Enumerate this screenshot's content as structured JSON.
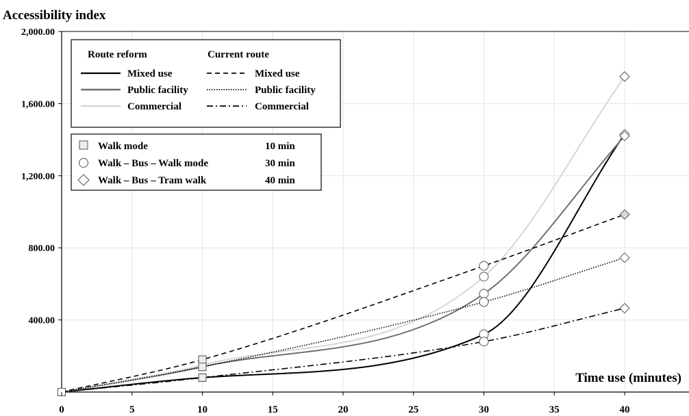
{
  "chart_data": {
    "type": "line",
    "ylabel": "Accessibility index",
    "xlabel": "Time use (minutes)",
    "xlim": [
      0,
      45
    ],
    "ylim": [
      0,
      2000
    ],
    "x_ticks": [
      "0",
      "5",
      "10",
      "15",
      "20",
      "25",
      "30",
      "35",
      "40"
    ],
    "x_tick_values": [
      0,
      5,
      10,
      15,
      20,
      25,
      30,
      35,
      40
    ],
    "y_ticks": [
      "400.00",
      "800.00",
      "1,200.00",
      "1,600.00",
      "2,000.00"
    ],
    "y_tick_values": [
      400,
      800,
      1200,
      1600,
      2000
    ],
    "grid": true,
    "x": [
      0,
      10,
      30,
      40
    ],
    "series": [
      {
        "name": "Mixed use",
        "group": "Route reform",
        "style": "solid",
        "color": "#000000",
        "values": [
          0,
          80,
          320,
          1430
        ]
      },
      {
        "name": "Public facility",
        "group": "Route reform",
        "style": "solid",
        "color": "#6f6f6f",
        "values": [
          0,
          140,
          545,
          1420
        ]
      },
      {
        "name": "Commercial",
        "group": "Route reform",
        "style": "solid",
        "color": "#d6d6d6",
        "values": [
          0,
          150,
          640,
          1750
        ]
      },
      {
        "name": "Mixed use",
        "group": "Current route",
        "style": "dashed",
        "color": "#000000",
        "values": [
          0,
          180,
          700,
          985
        ]
      },
      {
        "name": "Public facility",
        "group": "Current route",
        "style": "dotted",
        "color": "#000000",
        "values": [
          0,
          140,
          500,
          745
        ]
      },
      {
        "name": "Commercial",
        "group": "Current route",
        "style": "dashdot",
        "color": "#000000",
        "values": [
          0,
          80,
          280,
          465
        ]
      }
    ],
    "markers": [
      {
        "shape": "square",
        "label": "Walk mode",
        "time": "10 min"
      },
      {
        "shape": "circle",
        "label": "Walk – Bus – Walk mode",
        "time": "30 min"
      },
      {
        "shape": "diamond",
        "label": "Walk – Bus – Tram  walk",
        "time": "40 min"
      }
    ],
    "legend": {
      "position": "top-left",
      "reform_header": "Route reform",
      "current_header": "Current route"
    }
  }
}
